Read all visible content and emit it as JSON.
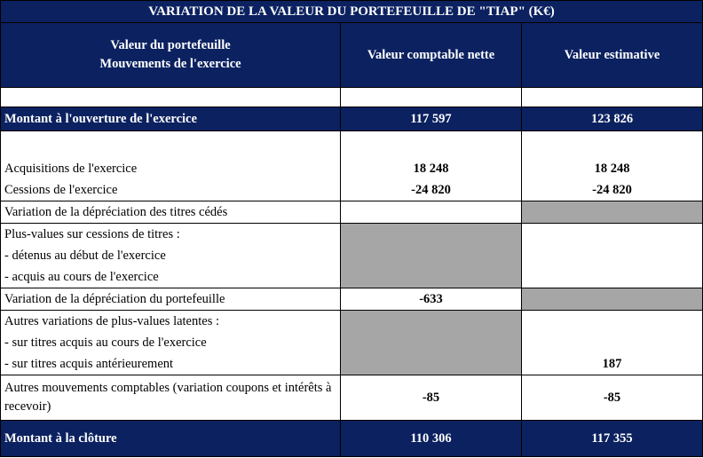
{
  "title": "VARIATION DE LA VALEUR DU PORTEFEUILLE DE \"TIAP\" (K€)",
  "header": {
    "col1_line1": "Valeur du portefeuille",
    "col1_line2": "Mouvements de l'exercice",
    "col2": "Valeur comptable nette",
    "col3": "Valeur estimative"
  },
  "opening": {
    "label": "Montant à l'ouverture de l'exercice",
    "vcn": "117 597",
    "ve": "123 826"
  },
  "rows": [
    {
      "label": "Acquisitions de l'exercice",
      "vcn": "18 248",
      "ve": "18 248"
    },
    {
      "label": "Cessions de l'exercice",
      "vcn": "-24 820",
      "ve": "-24 820"
    },
    {
      "label": "Variation de la dépréciation des titres cédés",
      "vcn": "",
      "ve": ""
    },
    {
      "label": "Plus-values sur cessions de titres :",
      "vcn": "",
      "ve": ""
    },
    {
      "label": "- détenus au début de l'exercice",
      "vcn": "",
      "ve": ""
    },
    {
      "label": "- acquis au cours de l'exercice",
      "vcn": "",
      "ve": ""
    },
    {
      "label": "Variation de la dépréciation du portefeuille",
      "vcn": "-633",
      "ve": ""
    },
    {
      "label": "Autres variations de plus-values latentes :",
      "vcn": "",
      "ve": ""
    },
    {
      "label": "- sur titres acquis au cours de l'exercice",
      "vcn": "",
      "ve": ""
    },
    {
      "label": "- sur titres acquis antérieurement",
      "vcn": "",
      "ve": "187"
    },
    {
      "label": "Autres mouvements comptables (variation coupons et intérêts à recevoir)",
      "vcn": "-85",
      "ve": "-85"
    }
  ],
  "closing": {
    "label": "Montant à la clôture",
    "vcn": "110 306",
    "ve": "117 355"
  }
}
